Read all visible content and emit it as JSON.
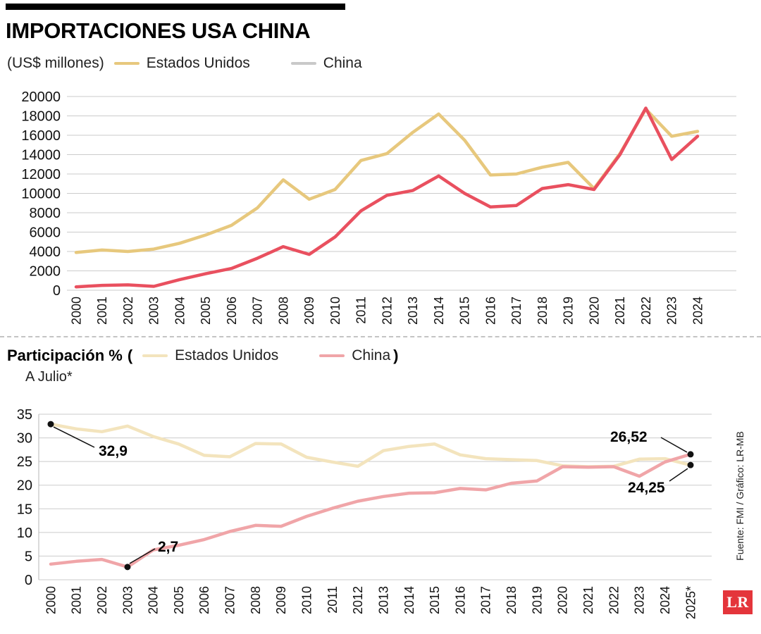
{
  "header": {
    "title": "IMPORTACIONES USA CHINA",
    "units_label": "(US$ millones)",
    "legend": [
      {
        "label": "Estados Unidos",
        "color": "#e7c87d"
      },
      {
        "label": "China",
        "color": "#c9c9c9"
      }
    ]
  },
  "share": {
    "title": "Participación %",
    "open_paren": "(",
    "close_paren": ")",
    "subtitle": "A Julio*",
    "legend": [
      {
        "label": "Estados Unidos",
        "color": "#f3e4bd"
      },
      {
        "label": "China",
        "color": "#f0a5a8"
      }
    ]
  },
  "footer": {
    "source": "Fuente: FMI / Gráfico: LR-MB",
    "logo_text": "LR",
    "logo_color": "#e4353b"
  },
  "chart_data": [
    {
      "type": "line",
      "title": "IMPORTACIONES USA CHINA",
      "ylabel": "US$ millones",
      "ylim": [
        0,
        20000
      ],
      "ystep": 2000,
      "grid": true,
      "legend_position": "top",
      "categories": [
        "2000",
        "2001",
        "2002",
        "2003",
        "2004",
        "2005",
        "2006",
        "2007",
        "2008",
        "2009",
        "2010",
        "2011",
        "2012",
        "2013",
        "2014",
        "2015",
        "2016",
        "2017",
        "2018",
        "2019",
        "2020",
        "2021",
        "2022",
        "2023",
        "2024"
      ],
      "series": [
        {
          "name": "Estados Unidos",
          "color": "#e7c87d",
          "values": [
            3900,
            4150,
            4000,
            4250,
            4850,
            5700,
            6700,
            8500,
            11400,
            9400,
            10400,
            13400,
            14100,
            16300,
            18200,
            15500,
            11900,
            12000,
            12700,
            13200,
            10500,
            14100,
            18700,
            15900,
            16400
          ]
        },
        {
          "name": "China",
          "color": "#e9505f",
          "values": [
            350,
            500,
            550,
            400,
            1100,
            1700,
            2250,
            3300,
            4500,
            3700,
            5500,
            8200,
            9800,
            10300,
            11800,
            10000,
            8600,
            8750,
            10500,
            10900,
            10400,
            14000,
            18800,
            13500,
            15900
          ]
        }
      ]
    },
    {
      "type": "line",
      "title": "Participación %",
      "subtitle": "A Julio*",
      "ylim": [
        0,
        35
      ],
      "ystep": 5,
      "grid": true,
      "legend_position": "top",
      "categories": [
        "2000",
        "2001",
        "2002",
        "2003",
        "2004",
        "2005",
        "2006",
        "2007",
        "2008",
        "2009",
        "2010",
        "2011",
        "2012",
        "2013",
        "2014",
        "2015",
        "2016",
        "2017",
        "2018",
        "2019",
        "2020",
        "2021",
        "2022",
        "2023",
        "2024",
        "2025*"
      ],
      "series": [
        {
          "name": "Estados Unidos",
          "color": "#f3e4bd",
          "values": [
            32.9,
            31.9,
            31.3,
            32.5,
            30.3,
            28.7,
            26.3,
            26.0,
            28.8,
            28.7,
            25.9,
            24.9,
            24.0,
            27.3,
            28.2,
            28.7,
            26.4,
            25.6,
            25.4,
            25.2,
            24.1,
            23.9,
            24.0,
            25.5,
            25.6,
            24.25
          ]
        },
        {
          "name": "China",
          "color": "#f0a5a8",
          "values": [
            3.3,
            3.9,
            4.3,
            2.7,
            6.3,
            7.3,
            8.5,
            10.2,
            11.5,
            11.3,
            13.4,
            15.1,
            16.6,
            17.6,
            18.3,
            18.4,
            19.3,
            19.0,
            20.4,
            20.9,
            23.9,
            23.8,
            23.9,
            21.9,
            24.9,
            26.52
          ]
        }
      ],
      "annotations": [
        {
          "series": "Estados Unidos",
          "category": "2000",
          "label": "32,9"
        },
        {
          "series": "China",
          "category": "2003",
          "label": "2,7"
        },
        {
          "series": "China",
          "category": "2025*",
          "label": "26,52"
        },
        {
          "series": "Estados Unidos",
          "category": "2025*",
          "label": "24,25"
        }
      ]
    }
  ]
}
